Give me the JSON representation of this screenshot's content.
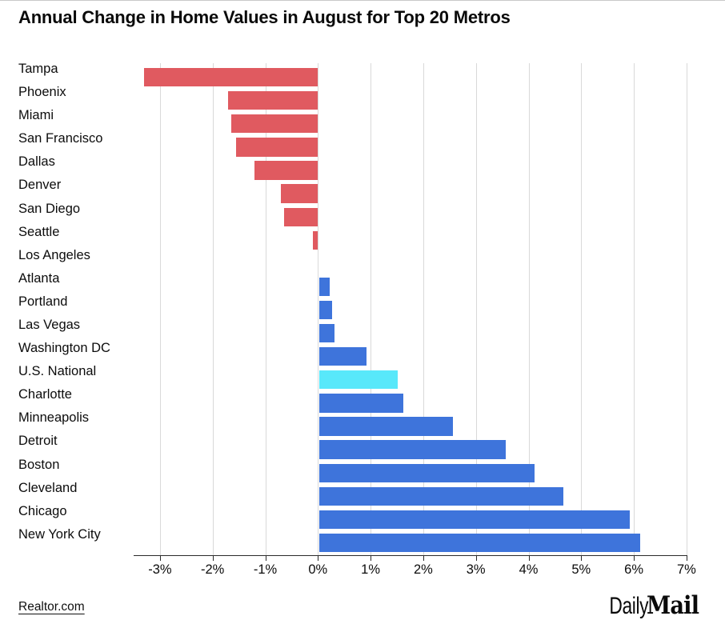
{
  "page": {
    "title": "Annual Change in Home Values in August for Top 20 Metros"
  },
  "footer": {
    "source_label": "Realtor.com",
    "brand_daily": "Daily",
    "brand_mail": "Mail"
  },
  "chart_data": {
    "type": "bar",
    "orientation": "horizontal",
    "title": "Annual Change in Home Values in August for Top 20 Metros",
    "unit": "%",
    "categories": [
      "Tampa",
      "Phoenix",
      "Miami",
      "San Francisco",
      "Dallas",
      "Denver",
      "San Diego",
      "Seattle",
      "Los Angeles",
      "Atlanta",
      "Portland",
      "Las Vegas",
      "Washington DC",
      "U.S. National",
      "Charlotte",
      "Minneapolis",
      "Detroit",
      "Boston",
      "Cleveland",
      "Chicago",
      "New York City"
    ],
    "values": [
      -3.3,
      -1.7,
      -1.65,
      -1.55,
      -1.2,
      -0.7,
      -0.65,
      -0.1,
      0,
      0.2,
      0.25,
      0.3,
      0.9,
      1.5,
      1.6,
      2.55,
      3.55,
      4.1,
      4.65,
      5.9,
      6.1
    ],
    "highlight_category": "U.S. National",
    "x_tick_labels": [
      "-3%",
      "-2%",
      "-1%",
      "0%",
      "1%",
      "2%",
      "3%",
      "4%",
      "5%",
      "6%",
      "7%"
    ],
    "x_tick_values": [
      -3,
      -2,
      -1,
      0,
      1,
      2,
      3,
      4,
      5,
      6,
      7
    ],
    "xlim": [
      -3.5,
      7
    ],
    "grid": true,
    "legend": "none",
    "colors": {
      "negative": "#E05A60",
      "positive": "#3E74DB",
      "highlight": "#58E8FA"
    }
  }
}
